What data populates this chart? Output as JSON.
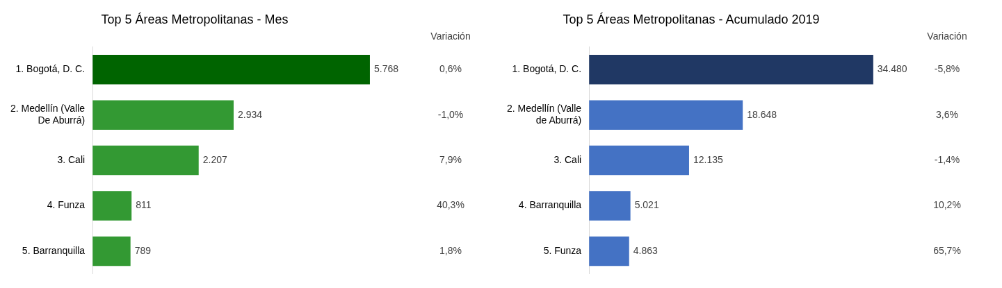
{
  "chart_data": [
    {
      "type": "bar",
      "orientation": "horizontal",
      "title": "Top 5 Áreas Metropolitanas - Mes",
      "categories": [
        "1. Bogotá, D. C.",
        "2. Medellín (Valle De Aburrá)",
        "3. Cali",
        "4. Funza",
        "5. Barranquilla"
      ],
      "values": [
        5768,
        2934,
        2207,
        811,
        789
      ],
      "value_labels": [
        "5.768",
        "2.934",
        "2.207",
        "811",
        "789"
      ],
      "colors": [
        "#006400",
        "#339933",
        "#339933",
        "#339933",
        "#339933"
      ],
      "grid": false,
      "legend": false,
      "tick_labels": "y",
      "annotations": [
        "Variación",
        "0,6%",
        "-1,0%",
        "7,9%",
        "40,3%",
        "1,8%"
      ]
    },
    {
      "type": "bar",
      "orientation": "horizontal",
      "title": "Top 5 Áreas Metropolitanas - Acumulado 2019",
      "categories": [
        "1. Bogotá, D. C.",
        "2. Medellín (Valle de Aburrá)",
        "3. Cali",
        "4. Barranquilla",
        "5. Funza"
      ],
      "values": [
        34480,
        18648,
        12135,
        5021,
        4863
      ],
      "value_labels": [
        "34.480",
        "18.648",
        "12.135",
        "5.021",
        "4.863"
      ],
      "colors": [
        "#203864",
        "#4472c4",
        "#4472c4",
        "#4472c4",
        "#4472c4"
      ],
      "grid": false,
      "legend": false,
      "tick_labels": "y",
      "annotations": [
        "Variación",
        "-5,8%",
        "3,6%",
        "-1,4%",
        "10,2%",
        "65,7%"
      ]
    }
  ]
}
